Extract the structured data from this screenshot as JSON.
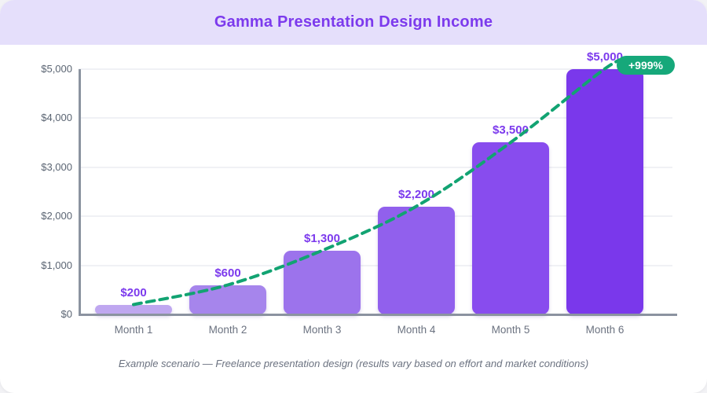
{
  "header": {
    "title": "Gamma Presentation Design Income"
  },
  "badge": {
    "label": "+999%",
    "color": "#16a87a"
  },
  "footer": {
    "caption": "Example scenario — Freelance presentation design (results vary based on effort and market conditions)"
  },
  "chart_data": {
    "type": "bar",
    "title": "Gamma Presentation Design Income",
    "categories": [
      "Month 1",
      "Month 2",
      "Month 3",
      "Month 4",
      "Month 5",
      "Month 6"
    ],
    "values": [
      200,
      600,
      1300,
      2200,
      3500,
      5000
    ],
    "value_labels": [
      "$200",
      "$600",
      "$1,300",
      "$2,200",
      "$3,500",
      "$5,000"
    ],
    "ytick_values": [
      0,
      1000,
      2000,
      3000,
      4000,
      5000
    ],
    "ytick_labels": [
      "$0",
      "$1,000",
      "$2,000",
      "$3,000",
      "$4,000",
      "$5,000"
    ],
    "ylim": [
      0,
      5000
    ],
    "grid": true,
    "legend": "none",
    "bar_colors": [
      "#bfa7f0",
      "#a685ec",
      "#9c73ec",
      "#9160ed",
      "#884cee",
      "#7a38eb"
    ],
    "trend_line": {
      "type": "dashed",
      "color": "#12a372",
      "description": "smooth dashed curve through bar tops"
    },
    "annotation_badge": "+999%"
  }
}
